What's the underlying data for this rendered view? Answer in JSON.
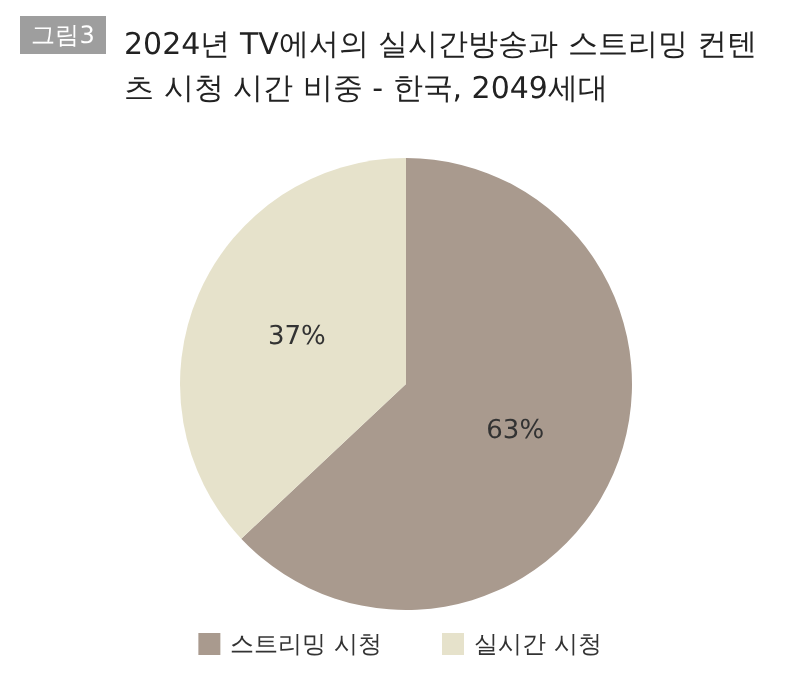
{
  "chart_data": {
    "type": "pie",
    "title": "2024년 TV에서의 실시간방송과 스트리밍 컨텐츠 시청 시간 비중 - 한국, 2049세대",
    "annotations": [
      "그림3"
    ],
    "categories": [
      "스트리밍 시청",
      "실시간 시청"
    ],
    "values": [
      63,
      37
    ],
    "colors": [
      "#a99a8e",
      "#e6e2cb"
    ],
    "value_labels": [
      "63%",
      "37%"
    ],
    "legend": "bottom"
  }
}
